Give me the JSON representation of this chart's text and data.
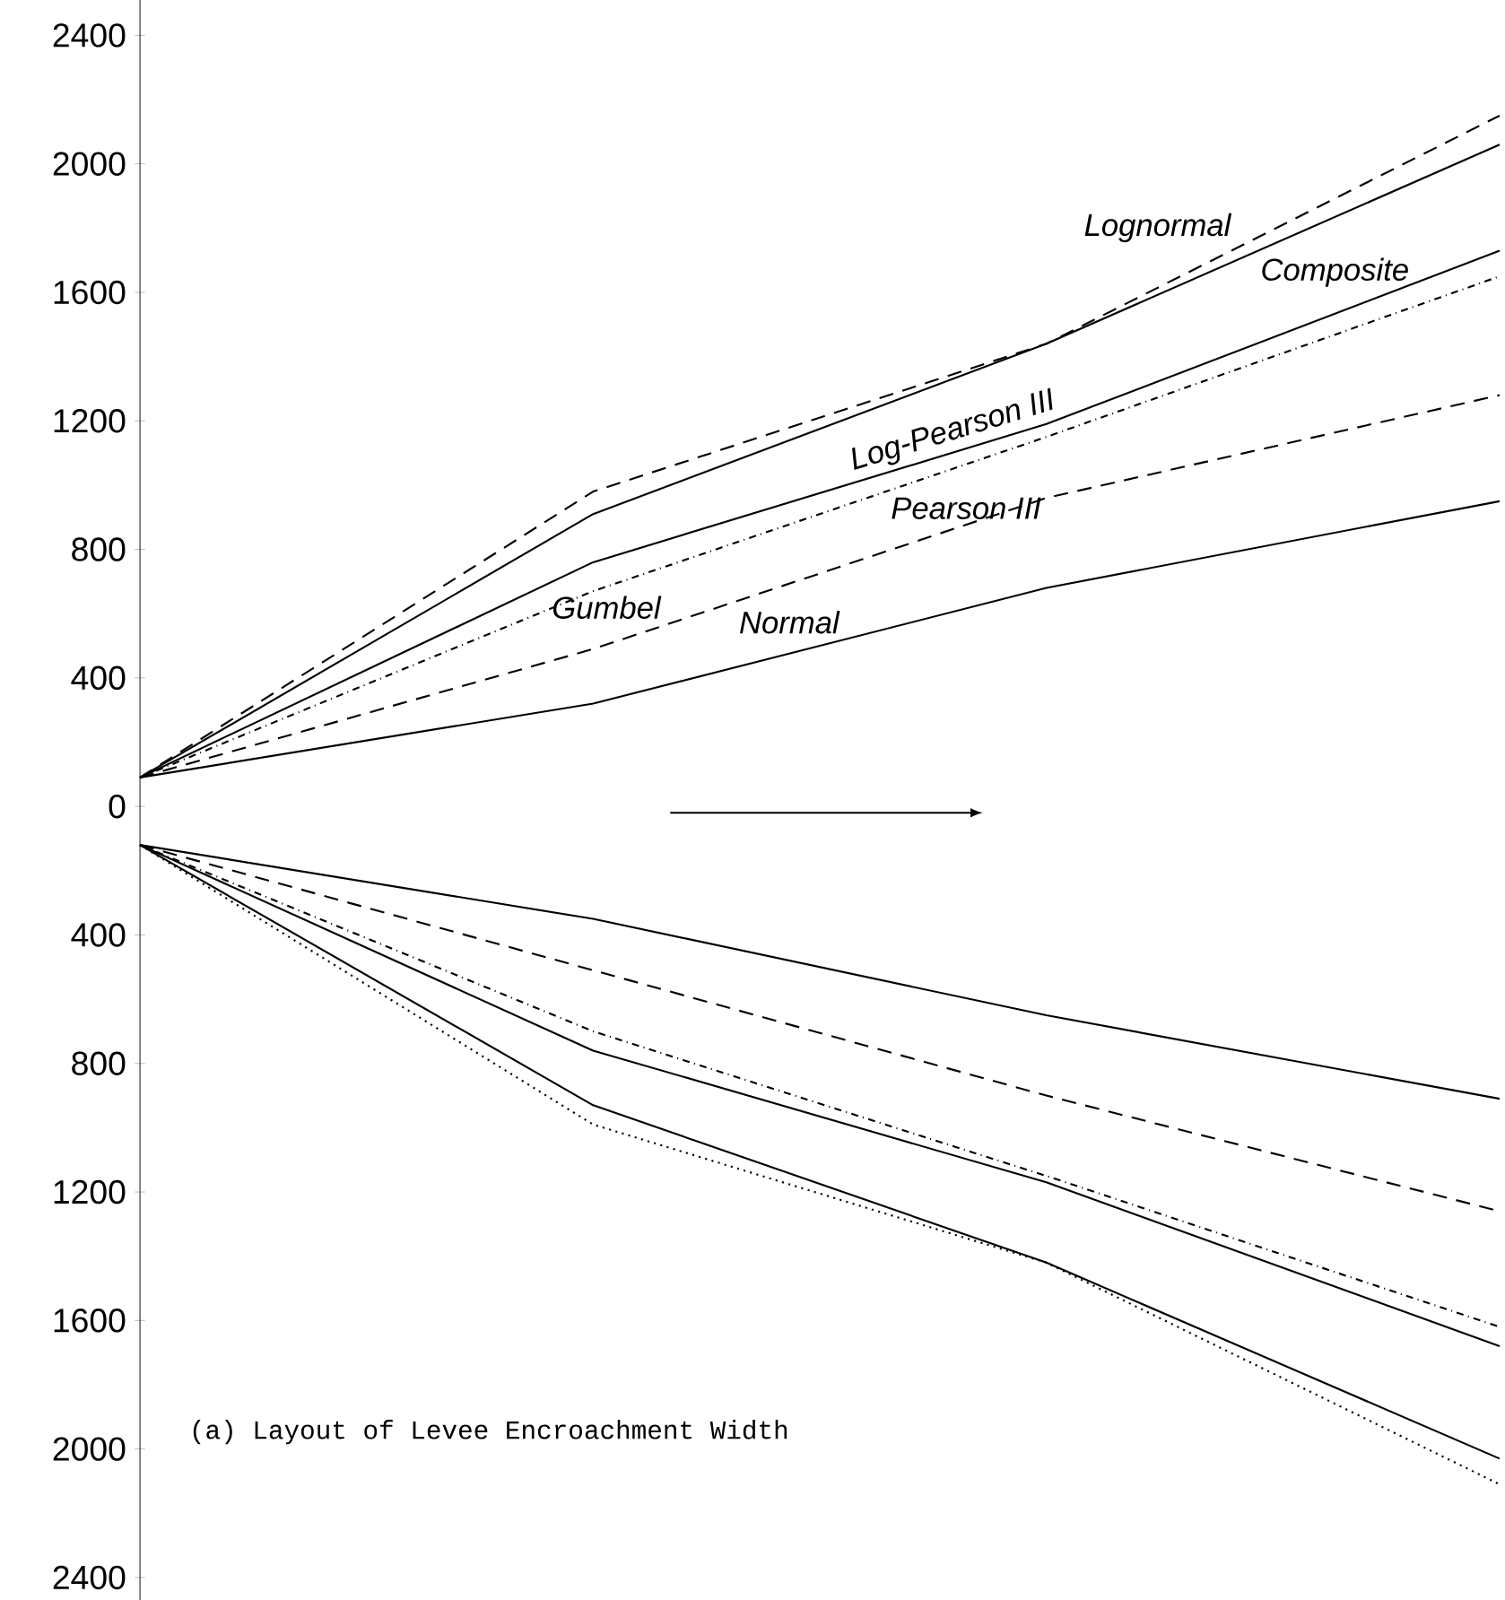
{
  "chart_data": {
    "type": "line",
    "categories": [
      null,
      null,
      null,
      null
    ],
    "series": [
      {
        "name": "Normal",
        "color": "#000000",
        "line_style": "solid",
        "values": [
          90,
          320,
          680,
          950
        ]
      },
      {
        "name": "Gumbel",
        "color": "#000000",
        "line_style": "dashed",
        "values": [
          90,
          490,
          960,
          1280
        ]
      },
      {
        "name": "Pearson III",
        "color": "#000000",
        "line_style": "dashdot",
        "values": [
          90,
          670,
          1150,
          1650
        ]
      },
      {
        "name": "Log-Pearson III",
        "color": "#000000",
        "line_style": "solid",
        "values": [
          90,
          760,
          1190,
          1730
        ]
      },
      {
        "name": "Composite",
        "color": "#000000",
        "line_style": "solid",
        "values": [
          90,
          910,
          1440,
          2060
        ]
      },
      {
        "name": "Lognormal",
        "color": "#000000",
        "line_style": "dashed",
        "values": [
          90,
          980,
          1440,
          2150
        ]
      },
      {
        "color": "#000000",
        "line_style": "solid",
        "values": [
          -120,
          -350,
          -650,
          -910
        ]
      },
      {
        "color": "#000000",
        "line_style": "dashed",
        "values": [
          -120,
          -510,
          -900,
          -1260
        ]
      },
      {
        "color": "#000000",
        "line_style": "dashdot",
        "values": [
          -120,
          -700,
          -1150,
          -1620
        ]
      },
      {
        "color": "#000000",
        "line_style": "solid",
        "values": [
          -120,
          -760,
          -1170,
          -1680
        ]
      },
      {
        "color": "#000000",
        "line_style": "solid",
        "values": [
          -120,
          -930,
          -1420,
          -2030
        ]
      },
      {
        "color": "#000000",
        "line_style": "dotted",
        "values": [
          -120,
          -990,
          -1420,
          -2110
        ]
      }
    ],
    "ylim": [
      -2470,
      2510
    ],
    "yticks": [
      {
        "value": -2400,
        "label": "2400"
      },
      {
        "value": -2000,
        "label": "2000"
      },
      {
        "value": -1600,
        "label": "1600"
      },
      {
        "value": -1200,
        "label": "1200"
      },
      {
        "value": -800,
        "label": "800"
      },
      {
        "value": -400,
        "label": "400"
      },
      0,
      400,
      800,
      1200,
      1600,
      2000,
      2400
    ],
    "annotations": [
      "(a) Layout of Levee Encroachment Width"
    ]
  }
}
